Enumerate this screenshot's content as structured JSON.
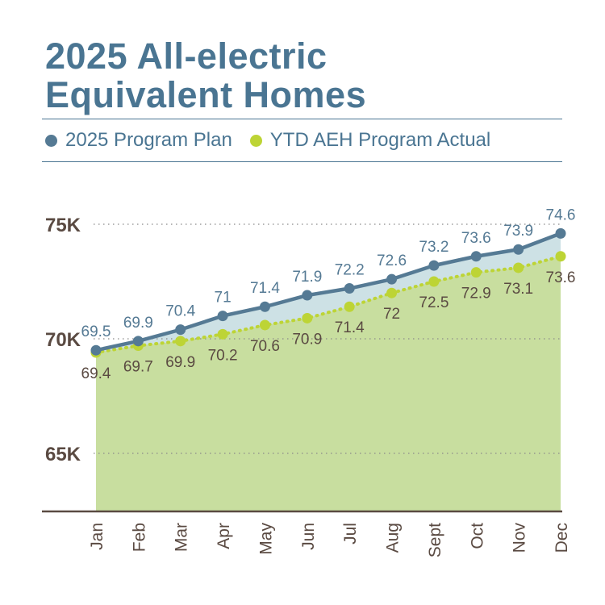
{
  "chart_data": {
    "type": "line",
    "title_lines": [
      "2025 All-electric",
      "Equivalent Homes"
    ],
    "categories": [
      "Jan",
      "Feb",
      "Mar",
      "Apr",
      "May",
      "Jun",
      "Jul",
      "Aug",
      "Sept",
      "Oct",
      "Nov",
      "Dec"
    ],
    "series": [
      {
        "name": "2025 Program Plan",
        "values": [
          69.5,
          69.9,
          70.4,
          71,
          71.4,
          71.9,
          72.2,
          72.6,
          73.2,
          73.6,
          73.9,
          74.6
        ],
        "labels": [
          "69.5",
          "69.9",
          "70.4",
          "71",
          "71.4",
          "71.9",
          "72.2",
          "72.6",
          "73.2",
          "73.6",
          "73.9",
          "74.6"
        ],
        "color": "#557a94",
        "fill": "#cde1e5",
        "style": "solid"
      },
      {
        "name": "YTD AEH Program Actual",
        "values": [
          69.4,
          69.7,
          69.9,
          70.2,
          70.6,
          70.9,
          71.4,
          72,
          72.5,
          72.9,
          73.1,
          73.6
        ],
        "labels": [
          "69.4",
          "69.7",
          "69.9",
          "70.2",
          "70.6",
          "70.9",
          "71.4",
          "72",
          "72.5",
          "72.9",
          "73.1",
          "73.6"
        ],
        "color": "#bdd435",
        "fill": "#c8de9f",
        "style": "dotted"
      }
    ],
    "y_ticks": [
      65,
      70,
      75
    ],
    "y_tick_labels": [
      "65K",
      "70K",
      "75K"
    ],
    "ylim": [
      62.5,
      75
    ],
    "xlabel": "",
    "ylabel": "",
    "grid": true,
    "legend_position": "top"
  },
  "colors": {
    "title": "#4a7592",
    "axis": "#5a4a42",
    "tick_text": "#5a4a42",
    "value_text": "#5a4a42"
  }
}
